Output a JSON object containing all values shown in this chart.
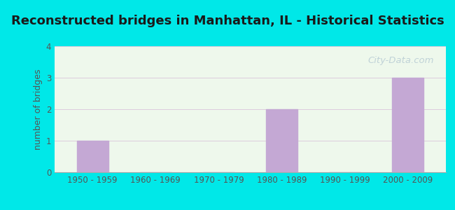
{
  "title": "Reconstructed bridges in Manhattan, IL - Historical Statistics",
  "categories": [
    "1950 - 1959",
    "1960 - 1969",
    "1970 - 1979",
    "1980 - 1989",
    "1990 - 1999",
    "2000 - 2009"
  ],
  "values": [
    1,
    0,
    0,
    2,
    0,
    3
  ],
  "bar_color": "#c4a8d4",
  "ylabel": "number of bridges",
  "ylim": [
    0,
    4
  ],
  "yticks": [
    0,
    1,
    2,
    3,
    4
  ],
  "background_outer": "#00e8e8",
  "background_inner": "#eef8ec",
  "grid_color": "#ddccdd",
  "title_fontsize": 13,
  "axis_label_fontsize": 9,
  "tick_fontsize": 8.5,
  "watermark": "City-Data.com",
  "watermark_color": "#b8ccd4",
  "title_color": "#1a1a1a"
}
